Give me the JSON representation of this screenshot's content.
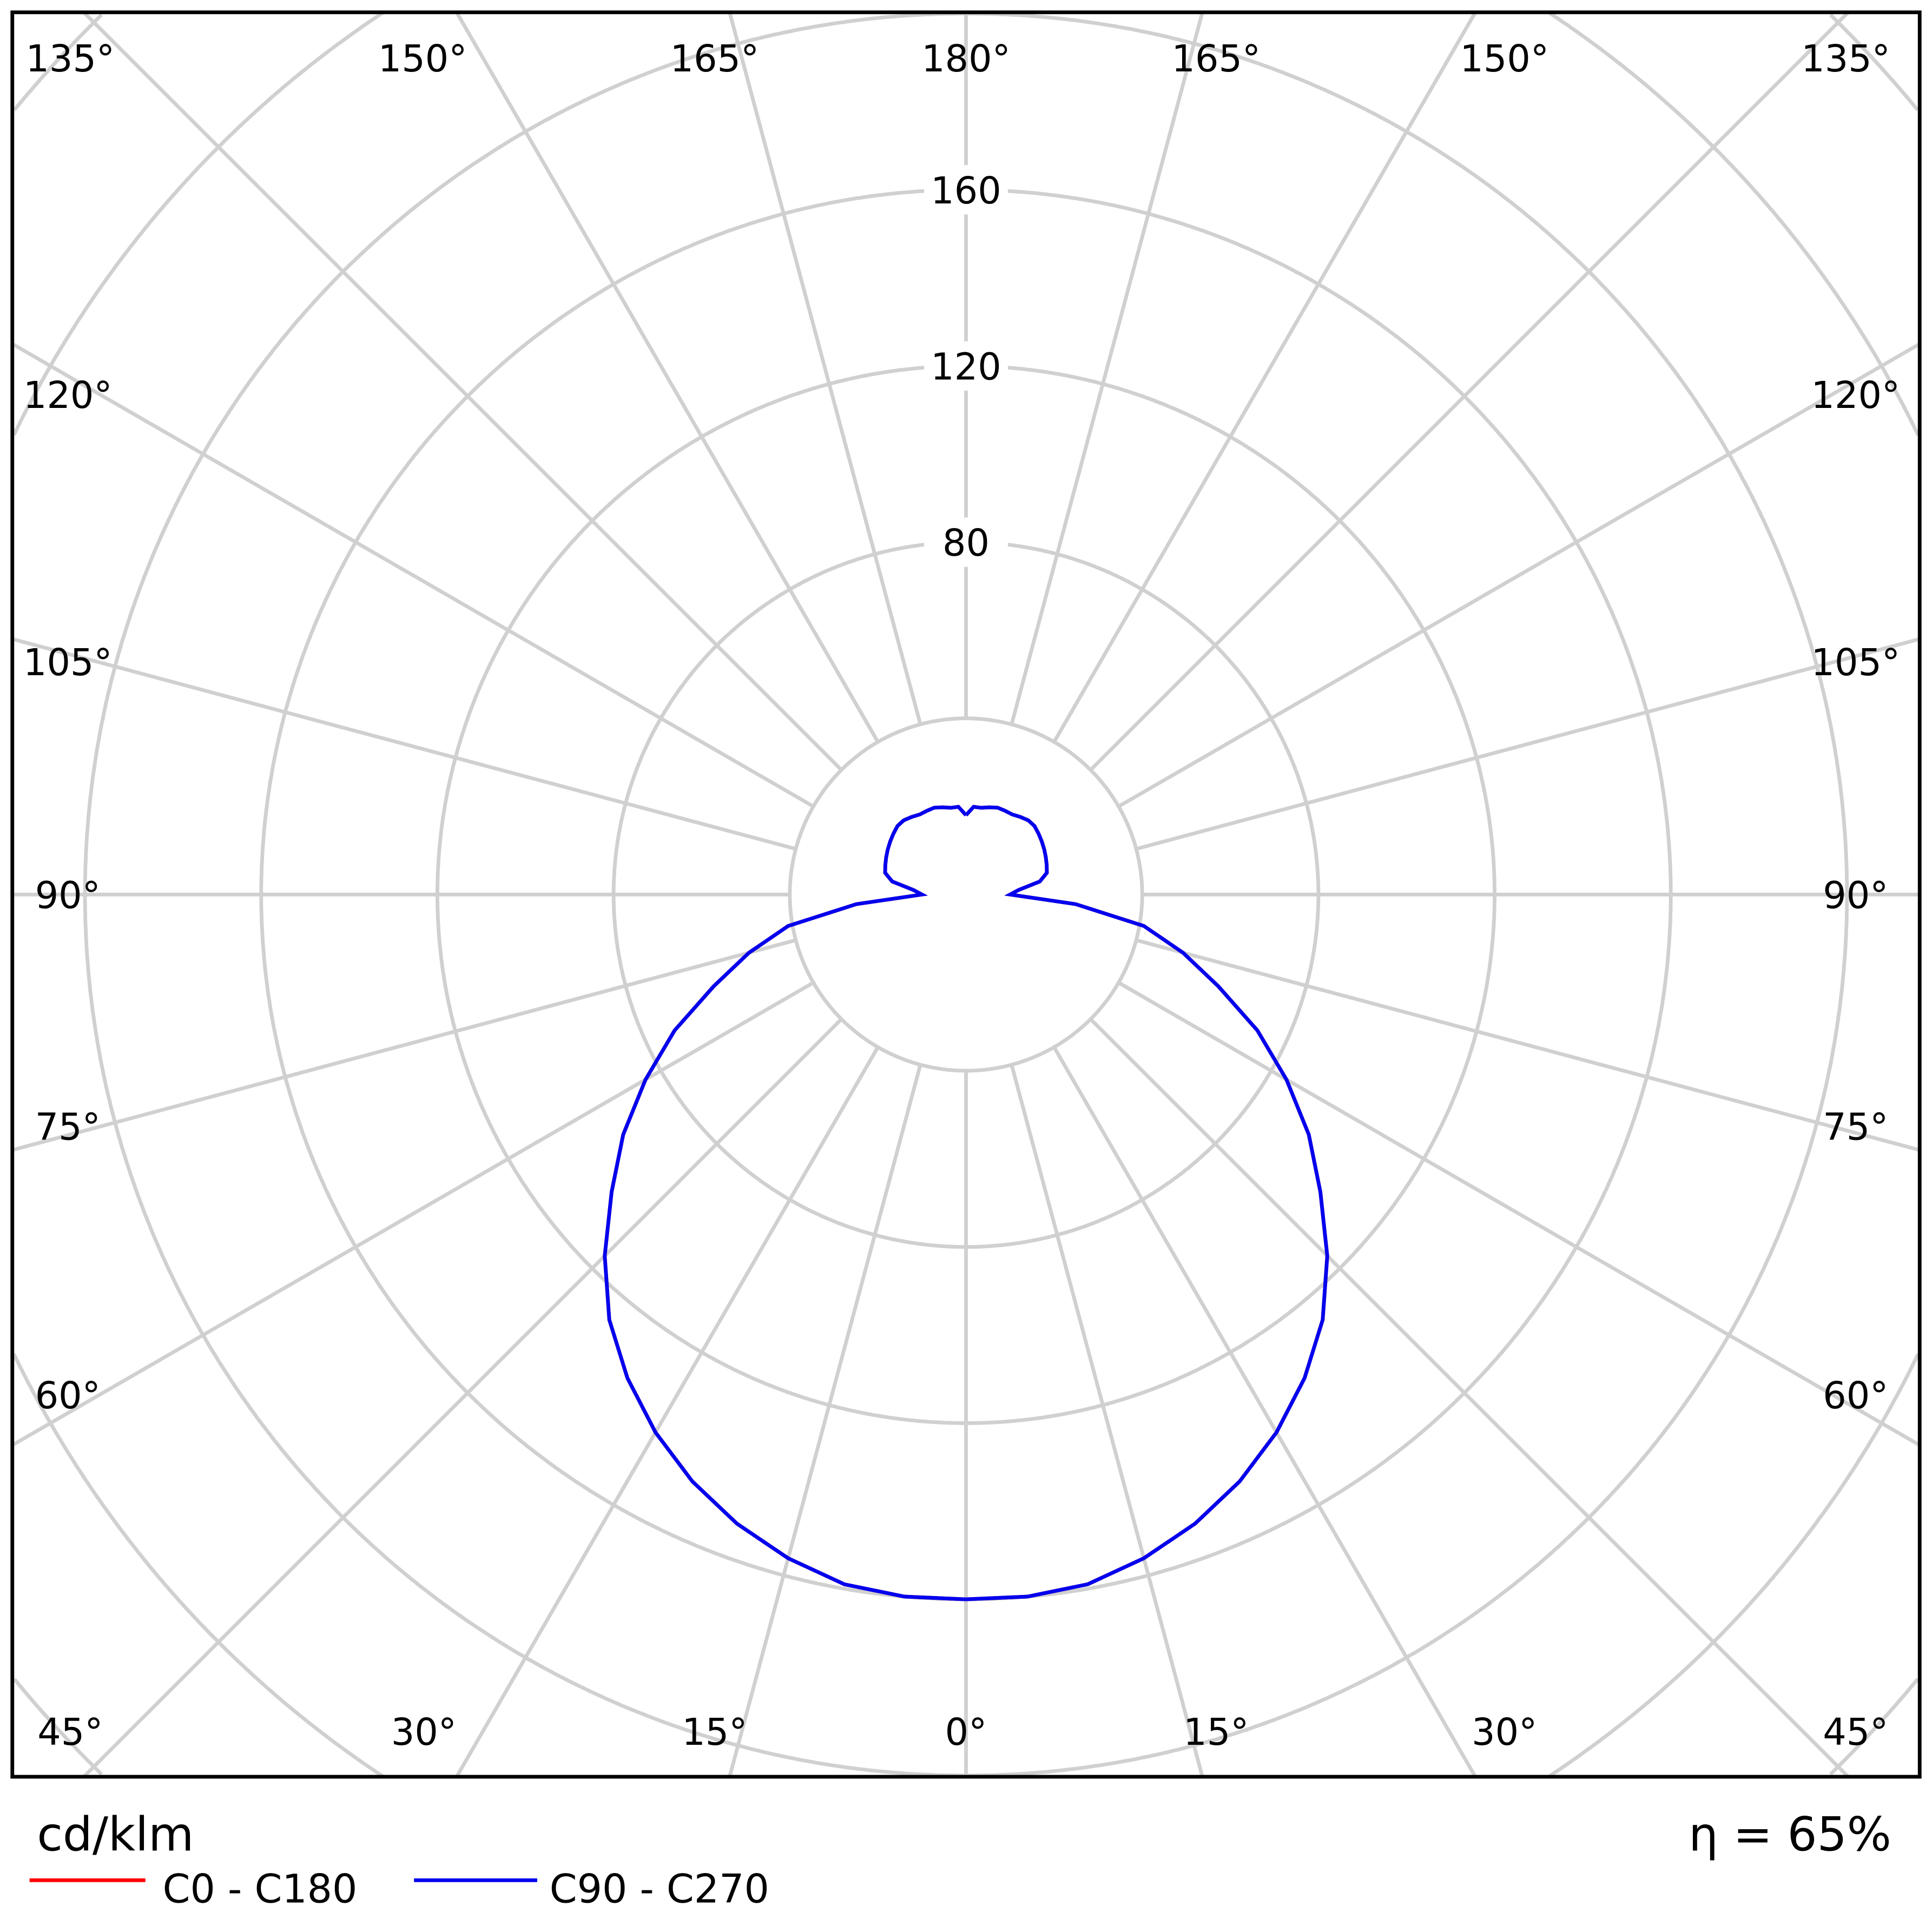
{
  "chart_data": {
    "type": "polar",
    "unit_label": "cd/klm",
    "efficiency_label": "η = 65%",
    "radial_ticks": [
      40,
      80,
      120,
      160,
      200,
      240,
      280,
      320
    ],
    "radial_tick_labels": [
      "80",
      "120",
      "160"
    ],
    "angle_labels": {
      "top": [
        "135°",
        "150°",
        "165°",
        "180°",
        "165°",
        "150°",
        "135°"
      ],
      "left": [
        "120°",
        "105°",
        "90°",
        "75°",
        "60°"
      ],
      "right": [
        "120°",
        "105°",
        "90°",
        "75°",
        "60°"
      ],
      "bottom": [
        "45°",
        "30°",
        "15°",
        "0°",
        "15°",
        "30°",
        "45°"
      ]
    },
    "gamma_deg": [
      0,
      5,
      10,
      15,
      20,
      25,
      30,
      35,
      40,
      45,
      50,
      55,
      60,
      65,
      70,
      75,
      80,
      85,
      90,
      95,
      100,
      105,
      110,
      115,
      120,
      125,
      130,
      135,
      140,
      145,
      150,
      155,
      160,
      165,
      170,
      175,
      180
    ],
    "series": [
      {
        "name": "C0 - C180",
        "color": "#ff0000",
        "values": [
          160,
          160,
          159,
          156,
          152,
          147,
          141,
          134,
          126,
          116,
          105,
          95,
          84,
          73,
          61,
          51,
          41,
          25,
          10,
          12,
          17,
          19,
          19.5,
          20,
          20.5,
          21,
          21.5,
          22,
          22,
          21.5,
          21,
          21,
          21,
          20.5,
          20,
          20,
          18
        ]
      },
      {
        "name": "C90 - C270",
        "color": "#0000ee",
        "values": [
          160,
          160,
          159,
          156,
          152,
          147,
          141,
          134,
          126,
          116,
          105,
          95,
          84,
          73,
          61,
          51,
          41,
          25,
          10,
          12,
          17,
          19,
          19.5,
          20,
          20.5,
          21,
          21.5,
          22,
          22,
          21.5,
          21,
          21,
          21,
          20.5,
          20,
          20,
          18
        ]
      }
    ]
  }
}
